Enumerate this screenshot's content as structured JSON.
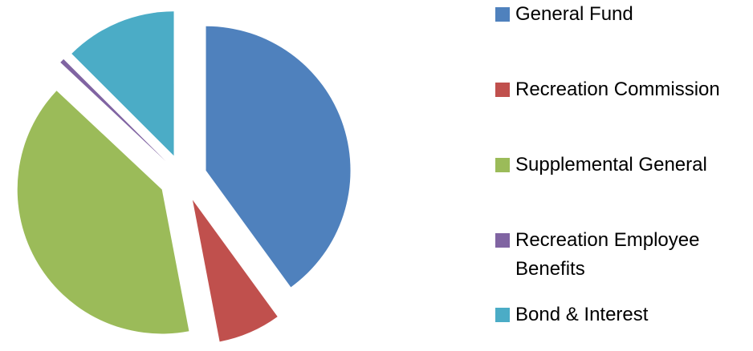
{
  "chart_data": {
    "type": "pie",
    "categories": [
      "General Fund",
      "Recreation Commission",
      "Supplemental General",
      "Recreation Employee Benefits",
      "Bond & Interest"
    ],
    "values": [
      40,
      7,
      40,
      0.5,
      12.5
    ],
    "colors": [
      "#4f81bd",
      "#c0504d",
      "#9bbb59",
      "#8064a2",
      "#4bacc6"
    ],
    "exploded": true,
    "legend": "right"
  }
}
